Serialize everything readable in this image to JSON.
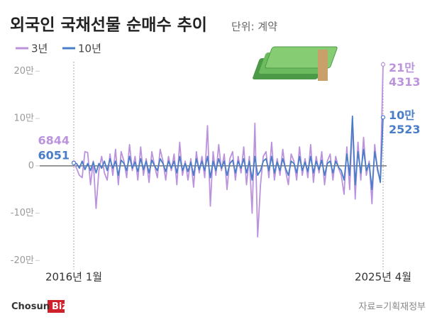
{
  "chart_data": {
    "type": "line",
    "title": "외국인 국채선물 순매수 추이",
    "subtitle": "단위: 계약",
    "categories": [
      "2016년 1월",
      null,
      null,
      null,
      null,
      null,
      null,
      null,
      null,
      null,
      null,
      null,
      null,
      null,
      null,
      null,
      null,
      null,
      null,
      null,
      null,
      null,
      null,
      null,
      null,
      null,
      null,
      null,
      null,
      null,
      null,
      null,
      null,
      null,
      null,
      null,
      null,
      null,
      null,
      null,
      null,
      null,
      null,
      null,
      null,
      null,
      null,
      null,
      null,
      null,
      null,
      null,
      null,
      null,
      null,
      null,
      null,
      null,
      null,
      null,
      null,
      null,
      null,
      null,
      null,
      null,
      null,
      null,
      null,
      null,
      null,
      null,
      null,
      null,
      null,
      null,
      null,
      null,
      null,
      null,
      null,
      null,
      null,
      null,
      null,
      null,
      null,
      null,
      null,
      null,
      null,
      null,
      null,
      null,
      null,
      null,
      null,
      null,
      null,
      null,
      null,
      null,
      null,
      null,
      null,
      null,
      null,
      null,
      null,
      null,
      null,
      "2025년 4월"
    ],
    "series": [
      {
        "name": "3년",
        "color": "#bb93dd",
        "values": [
          6844,
          -5000,
          -20000,
          -25000,
          30000,
          28000,
          -40000,
          10000,
          -90000,
          -10000,
          20000,
          -15000,
          -30000,
          25000,
          -20000,
          35000,
          -40000,
          30000,
          10000,
          -25000,
          45000,
          -10000,
          20000,
          -30000,
          40000,
          -20000,
          15000,
          -35000,
          30000,
          0,
          -25000,
          35000,
          10000,
          -30000,
          20000,
          -10000,
          25000,
          -40000,
          50000,
          -20000,
          10000,
          -30000,
          15000,
          -45000,
          30000,
          -15000,
          20000,
          -25000,
          85000,
          -85000,
          30000,
          -20000,
          45000,
          -10000,
          25000,
          -50000,
          15000,
          30000,
          -30000,
          20000,
          -15000,
          40000,
          -40000,
          20000,
          -100000,
          90000,
          -150000,
          -40000,
          20000,
          30000,
          -25000,
          50000,
          -30000,
          15000,
          -20000,
          35000,
          -10000,
          -40000,
          25000,
          10000,
          -30000,
          40000,
          -20000,
          15000,
          -25000,
          45000,
          -35000,
          20000,
          -15000,
          30000,
          -40000,
          10000,
          25000,
          -30000,
          20000,
          -5000,
          -20000,
          -60000,
          40000,
          -50000,
          95000,
          -70000,
          50000,
          -30000,
          60000,
          -20000,
          10000,
          -80000,
          45000,
          -10000,
          -30000,
          214313
        ],
        "value_labels": [
          null,
          null,
          null,
          null,
          null,
          null,
          null,
          null,
          null,
          null,
          null,
          null,
          null,
          null,
          null,
          null,
          null,
          null,
          null,
          null,
          null,
          null,
          null,
          null,
          null,
          null,
          null,
          null,
          null,
          null,
          null,
          null,
          null,
          null,
          null,
          null,
          null,
          null,
          null,
          null,
          null,
          null,
          null,
          null,
          null,
          null,
          null,
          null,
          null,
          null,
          null,
          null,
          null,
          null,
          null,
          null,
          null,
          null,
          null,
          null,
          null,
          null,
          null,
          null,
          null,
          null,
          null,
          null,
          null,
          null,
          null,
          null,
          null,
          null,
          null,
          null,
          null,
          null,
          null,
          null,
          null,
          null,
          null,
          null,
          null,
          null,
          null,
          null,
          null,
          null,
          null,
          null,
          null,
          null,
          null,
          null,
          null,
          null,
          null,
          null,
          null,
          null,
          null,
          null,
          null,
          null,
          null,
          null,
          null,
          null,
          null,
          [
            "21만",
            "4313"
          ]
        ]
      },
      {
        "name": "10년",
        "color": "#4a7dc8",
        "values": [
          6051,
          5000,
          -5000,
          10000,
          -8000,
          5000,
          -10000,
          8000,
          -15000,
          5000,
          -5000,
          10000,
          -10000,
          15000,
          -5000,
          10000,
          -20000,
          12000,
          5000,
          -10000,
          20000,
          -5000,
          8000,
          -12000,
          15000,
          -8000,
          10000,
          -15000,
          12000,
          0,
          -10000,
          15000,
          5000,
          -12000,
          10000,
          -5000,
          10000,
          -15000,
          20000,
          -10000,
          5000,
          -12000,
          8000,
          -20000,
          15000,
          -8000,
          10000,
          -10000,
          20000,
          -25000,
          10000,
          -10000,
          15000,
          -5000,
          10000,
          -20000,
          5000,
          12000,
          -15000,
          10000,
          -5000,
          15000,
          -15000,
          10000,
          -30000,
          20000,
          -20000,
          -10000,
          10000,
          15000,
          -10000,
          20000,
          -15000,
          8000,
          -10000,
          15000,
          -5000,
          -20000,
          10000,
          5000,
          -15000,
          20000,
          -10000,
          8000,
          -12000,
          20000,
          -15000,
          10000,
          -8000,
          12000,
          -20000,
          5000,
          10000,
          -15000,
          10000,
          -3000,
          -10000,
          -30000,
          25000,
          -20000,
          105000,
          -40000,
          30000,
          -15000,
          35000,
          -10000,
          5000,
          -50000,
          30000,
          -5000,
          -35000,
          102523
        ],
        "value_labels": [
          null,
          null,
          null,
          null,
          null,
          null,
          null,
          null,
          null,
          null,
          null,
          null,
          null,
          null,
          null,
          null,
          null,
          null,
          null,
          null,
          null,
          null,
          null,
          null,
          null,
          null,
          null,
          null,
          null,
          null,
          null,
          null,
          null,
          null,
          null,
          null,
          null,
          null,
          null,
          null,
          null,
          null,
          null,
          null,
          null,
          null,
          null,
          null,
          null,
          null,
          null,
          null,
          null,
          null,
          null,
          null,
          null,
          null,
          null,
          null,
          null,
          null,
          null,
          null,
          null,
          null,
          null,
          null,
          null,
          null,
          null,
          null,
          null,
          null,
          null,
          null,
          null,
          null,
          null,
          null,
          null,
          null,
          null,
          null,
          null,
          null,
          null,
          null,
          null,
          null,
          null,
          null,
          null,
          null,
          null,
          null,
          null,
          null,
          null,
          null,
          null,
          null,
          null,
          null,
          null,
          null,
          null,
          null,
          null,
          null,
          null,
          [
            "10만",
            "2523"
          ]
        ]
      }
    ],
    "ylim": [
      -210000,
      220000
    ],
    "yticks": [
      {
        "value": 200000,
        "label": "20만"
      },
      {
        "value": 100000,
        "label": "10만"
      },
      0,
      {
        "value": -100000,
        "label": "-10만"
      },
      {
        "value": -200000,
        "label": "-20만"
      }
    ],
    "grid": false,
    "legend": "top-left",
    "source": "자료=기획재정부",
    "brand": [
      "Chosun",
      "Biz"
    ]
  }
}
